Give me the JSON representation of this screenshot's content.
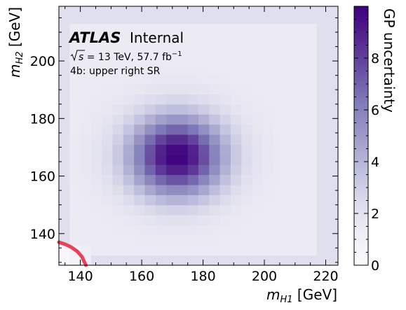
{
  "chart_data": {
    "type": "heatmap",
    "xlabel_sym": "m",
    "xlabel_sub": "H1",
    "xlabel_unit": " [GeV]",
    "ylabel_sym": "m",
    "ylabel_sub": "H2",
    "ylabel_unit": " [GeV]",
    "xlim": [
      133,
      224
    ],
    "ylim": [
      129,
      219
    ],
    "xticks": [
      140,
      160,
      180,
      200,
      220
    ],
    "yticks": [
      140,
      160,
      180,
      200
    ],
    "bin_width": 3.5,
    "colorbar": {
      "label": "GP uncertainty",
      "range": [
        0,
        10
      ],
      "ticks": [
        0,
        2,
        4,
        6,
        8
      ],
      "colormap": "Purples",
      "color_low": "#fcfbfd",
      "color_high": "#3f007d"
    },
    "surface": {
      "description_center": [
        171.5,
        167
      ],
      "peak_value": 10,
      "sigma_x": 11,
      "sigma_y": 10,
      "background_value": 1.4,
      "edge_value": 2.2,
      "corner_lowleft_value": 0.2
    },
    "contour": {
      "color": "#e8425a",
      "points": [
        [
          133,
          137
        ],
        [
          135,
          136.3
        ],
        [
          137,
          135.3
        ],
        [
          139,
          133.8
        ],
        [
          140.5,
          132
        ],
        [
          141.8,
          129
        ]
      ]
    },
    "annotations": {
      "atlas": "ATLAS",
      "internal": "Internal",
      "sqrt_s": "s",
      "energy_lumi": " = 13 TeV, 57.7 fb",
      "lumi_exp": "−1",
      "region": "4b: upper right SR"
    }
  }
}
